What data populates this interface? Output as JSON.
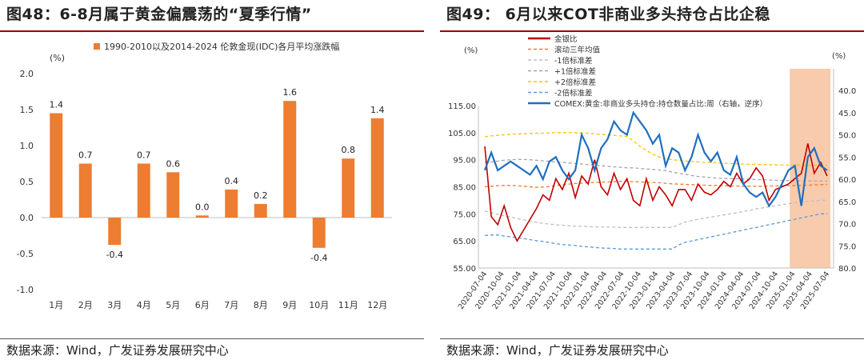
{
  "left": {
    "title": "图48：6-8月属于黄金偏震荡的“夏季行情”",
    "source": "数据来源：Wind，广发证券发展研究中心",
    "accent": "#a40000"
  },
  "right": {
    "title": "图49：  6月以来COT非商业多头持仓占比企稳",
    "source": "数据来源：Wind，广发证券发展研究中心",
    "accent": "#a40000"
  },
  "chart_data": [
    {
      "type": "bar",
      "legend": "1990-2010以及2014-2024 伦敦金现(IDC)各月平均涨跌幅",
      "unit": "(%)",
      "categories": [
        "1月",
        "2月",
        "3月",
        "4月",
        "5月",
        "6月",
        "7月",
        "8月",
        "9月",
        "10月",
        "11月",
        "12月"
      ],
      "values": [
        1.45,
        0.75,
        -0.38,
        0.75,
        0.63,
        0.03,
        0.39,
        0.19,
        1.62,
        -0.42,
        0.82,
        1.38
      ],
      "data_labels": [
        "1.4",
        "0.7",
        "-0.4",
        "0.7",
        "0.6",
        "0.0",
        "0.4",
        "0.2",
        "1.6",
        "-0.4",
        "0.8",
        "1.4"
      ],
      "ylim": [
        -1.0,
        2.0
      ],
      "yticks": [
        "2.0",
        "1.5",
        "1.0",
        "0.5",
        "0.0",
        "-0.5",
        "-1.0"
      ],
      "bar_color": "#ed7d31",
      "legend_position": "top-center",
      "grid": false
    },
    {
      "type": "line",
      "left_unit": "(%)",
      "right_unit": "(%)",
      "ylim_left": [
        55,
        115
      ],
      "ylim_right": [
        80,
        35
      ],
      "right_axis_inverted": true,
      "yticks_left": [
        "115.00",
        "105.00",
        "95.00",
        "85.00",
        "75.00",
        "65.00",
        "55.00"
      ],
      "yticks_right": [
        "40.0",
        "45.0",
        "50.0",
        "55.0",
        "60.0",
        "65.0",
        "70.0",
        "75.0",
        "80.0"
      ],
      "x_ticks": [
        "2020-07-04",
        "2020-10-04",
        "2021-01-04",
        "2021-04-04",
        "2021-07-04",
        "2021-10-04",
        "2022-01-04",
        "2022-04-04",
        "2022-07-04",
        "2022-10-04",
        "2023-01-04",
        "2023-04-04",
        "2023-07-04",
        "2023-10-04",
        "2024-01-04",
        "2024-04-04",
        "2024-07-04",
        "2024-10-04",
        "2025-01-04",
        "2025-04-04",
        "2025-07-04"
      ],
      "highlight": {
        "from": "2025-01-04",
        "to": "2025-07-04",
        "color": "#f8cbad"
      },
      "legend_position": "top-left",
      "grid": false,
      "series": [
        {
          "name": "金银比",
          "axis": "left",
          "color": "#c00000",
          "style": "solid",
          "values": [
            100,
            74,
            71,
            78,
            70,
            65,
            69,
            73,
            77,
            82,
            80,
            88,
            84,
            90,
            81,
            89,
            86,
            95,
            85,
            82,
            90,
            84,
            88,
            80,
            78,
            88,
            80,
            85,
            82,
            78,
            84,
            84,
            80,
            86,
            83,
            82,
            84,
            87,
            85,
            90,
            86,
            88,
            92,
            89,
            80,
            84,
            85,
            86,
            88,
            90,
            101,
            90,
            94,
            89
          ]
        },
        {
          "name": "滚动三年均值",
          "axis": "left",
          "color": "#ed7d31",
          "style": "dashed",
          "values": [
            85,
            85.2,
            85.4,
            85.5,
            85.5,
            85.4,
            85.2,
            85,
            84.8,
            84.9,
            85.1,
            85.5,
            85.8,
            86,
            86.2,
            86.3,
            86.5,
            86.6,
            86.7,
            86.8,
            86.9,
            87,
            87,
            86.9,
            86.8,
            86.7,
            86.6,
            86.5,
            86.3,
            86.1,
            86,
            85.9,
            85.8,
            85.7,
            85.6,
            85.5,
            85.5,
            85.4,
            85.3,
            85.3,
            85.2,
            85.2,
            85.2,
            85.2,
            85.3,
            85.3,
            85.4,
            85.4,
            85.5,
            85.5,
            85.6,
            85.7,
            85.8,
            85.9
          ]
        },
        {
          "name": "-1倍标准差",
          "axis": "left",
          "color": "#bfbfbf",
          "style": "dashed",
          "values": [
            76,
            75.4,
            74.8,
            74.3,
            73.8,
            73.3,
            72.8,
            72.3,
            71.9,
            71.5,
            71.2,
            71,
            70.8,
            70.6,
            70.5,
            70.4,
            70.3,
            70.2,
            70.2,
            70.1,
            70.1,
            70,
            70,
            70,
            70,
            70,
            70,
            70,
            70,
            70,
            71,
            72,
            72.5,
            73,
            73.4,
            73.8,
            74.2,
            74.6,
            75,
            75.4,
            75.9,
            76.3,
            76.8,
            77.2,
            77.6,
            78,
            78.4,
            78.8,
            79.1,
            79.4,
            79.6,
            79.8,
            80,
            80.1
          ]
        },
        {
          "name": "+1倍标准差",
          "axis": "left",
          "color": "#a6a6a6",
          "style": "dashed",
          "values": [
            94,
            94.2,
            94.5,
            94.8,
            95,
            95.1,
            95.1,
            95,
            94.8,
            94.6,
            94.4,
            94.2,
            94,
            93.8,
            93.6,
            93.4,
            93.2,
            93,
            92.8,
            92.6,
            92.4,
            92.2,
            92,
            92,
            91.8,
            91.6,
            91.4,
            91.2,
            91,
            90.4,
            90,
            89.6,
            89.2,
            88.8,
            88.6,
            88.4,
            88.2,
            88.1,
            88,
            88,
            87.9,
            87.8,
            87.7,
            87.6,
            87.5,
            87.4,
            87.3,
            87.3,
            87.2,
            87.2,
            87.2,
            87.2,
            87.1,
            87.1
          ]
        },
        {
          "name": "+2倍标准差",
          "axis": "left",
          "color": "#ffc000",
          "style": "dashed",
          "values": [
            103.5,
            103.8,
            104,
            104.2,
            104.4,
            104.5,
            104.6,
            104.7,
            104.8,
            104.8,
            104.9,
            105,
            105,
            105,
            105,
            104.9,
            104.8,
            104.6,
            104.4,
            104.2,
            104,
            103.8,
            103.6,
            102,
            100,
            98.5,
            97,
            96,
            95.5,
            95,
            94.8,
            94.5,
            94.3,
            94.2,
            94,
            94,
            93.8,
            93.7,
            93.6,
            93.5,
            93.4,
            93.3,
            93.3,
            93.2,
            93.2,
            93.1,
            93.1,
            93,
            93,
            93,
            92.9,
            92.9,
            92.9,
            92.9
          ]
        },
        {
          "name": "-2倍标准差",
          "axis": "left",
          "color": "#5b9bd5",
          "style": "dashed",
          "values": [
            67,
            67.2,
            67.2,
            66.8,
            66.5,
            66.2,
            65.9,
            65.5,
            65.1,
            64.8,
            64.4,
            64,
            63.7,
            63.5,
            63.3,
            63,
            62.8,
            62.6,
            62.4,
            62.3,
            62.2,
            62,
            62,
            62,
            62,
            62,
            62,
            62,
            62,
            62,
            63.5,
            64.5,
            65,
            65.5,
            66,
            66.5,
            67,
            67.5,
            68,
            68.5,
            69,
            69.5,
            70,
            70.5,
            71,
            71.5,
            72,
            72.5,
            73,
            73.5,
            74,
            74.5,
            75,
            75
          ]
        },
        {
          "name": "COMEX:黄金:非商业多头持仓:持仓数量占比:周（右轴，逆序）",
          "axis": "right",
          "color": "#1f6fbf",
          "style": "solid",
          "values": [
            58,
            54,
            58,
            57,
            56,
            57,
            58,
            59,
            57,
            60,
            56,
            55,
            58,
            60,
            58,
            50,
            53,
            58,
            53,
            51,
            47,
            49,
            50,
            45,
            47,
            49,
            52,
            50,
            57,
            53,
            54,
            58,
            55,
            50,
            54,
            56,
            54,
            58,
            59,
            55,
            61,
            63,
            64,
            63,
            66,
            64,
            61,
            58,
            57,
            66,
            55,
            53,
            57,
            58
          ]
        }
      ]
    }
  ]
}
